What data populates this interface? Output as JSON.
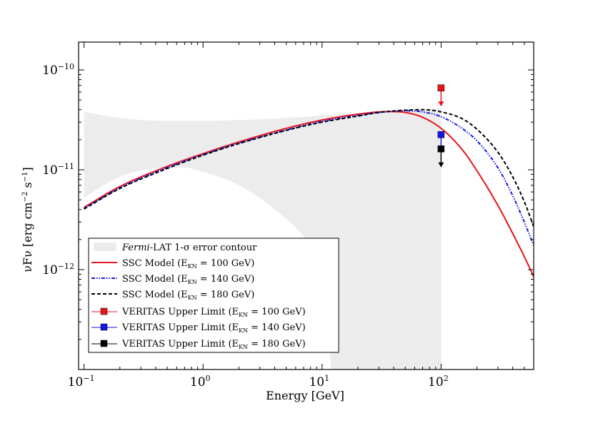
{
  "chart_data": {
    "type": "line",
    "xlabel": "Energy [GeV]",
    "ylabel": "νFν [erg cm⁻² s⁻¹]",
    "ylabel_parts": {
      "main": "νFν [erg cm",
      "exp1": "−2",
      "mid": " s",
      "exp2": "−1",
      "end": "]"
    },
    "xscale": "log",
    "yscale": "log",
    "xlim": [
      0.09,
      600
    ],
    "ylim": [
      1e-13,
      1.9e-10
    ],
    "x_ticks": [
      {
        "value": 0.1,
        "base": "10",
        "exp": "−1"
      },
      {
        "value": 1,
        "base": "10",
        "exp": "0"
      },
      {
        "value": 10,
        "base": "10",
        "exp": "1"
      },
      {
        "value": 100,
        "base": "10",
        "exp": "2"
      }
    ],
    "y_ticks": [
      {
        "value": 1e-12,
        "base": "10",
        "exp": "−12"
      },
      {
        "value": 1e-11,
        "base": "10",
        "exp": "−11"
      },
      {
        "value": 1e-10,
        "base": "10",
        "exp": "−10"
      }
    ],
    "error_contour": {
      "name": "Fermi-LAT 1-σ error contour",
      "color": "#ececec",
      "upper": [
        [
          0.1,
          3.8e-11
        ],
        [
          0.2,
          3.3e-11
        ],
        [
          0.5,
          3.1e-11
        ],
        [
          1,
          3.1e-11
        ],
        [
          2,
          3.15e-11
        ],
        [
          5,
          3.3e-11
        ],
        [
          10,
          3.5e-11
        ],
        [
          20,
          3.7e-11
        ],
        [
          40,
          3.85e-11
        ],
        [
          100,
          4.1e-11
        ]
      ],
      "lower": [
        [
          0.1,
          5.3e-12
        ],
        [
          0.2,
          8.5e-12
        ],
        [
          0.5,
          1.05e-11
        ],
        [
          0.7,
          1.05e-11
        ],
        [
          1,
          9.5e-12
        ],
        [
          2,
          7e-12
        ],
        [
          4,
          4e-12
        ],
        [
          8,
          1.7e-12
        ],
        [
          11,
          7e-13
        ],
        [
          12,
          1e-13
        ],
        [
          100,
          1e-13
        ]
      ]
    },
    "series": [
      {
        "name": "SSC Model (E_KN = 100 GeV)",
        "label_main": "SSC Model (E",
        "label_sub": "KN",
        "label_end": " = 100 GeV)",
        "color": "#e8141c",
        "style": "solid",
        "points": [
          [
            0.1,
            4.2e-12
          ],
          [
            0.2,
            6.8e-12
          ],
          [
            0.5,
            1.08e-11
          ],
          [
            1,
            1.45e-11
          ],
          [
            2,
            1.9e-11
          ],
          [
            5,
            2.6e-11
          ],
          [
            10,
            3.15e-11
          ],
          [
            20,
            3.6e-11
          ],
          [
            30,
            3.8e-11
          ],
          [
            40,
            3.82e-11
          ],
          [
            50,
            3.75e-11
          ],
          [
            70,
            3.35e-11
          ],
          [
            100,
            2.6e-11
          ],
          [
            150,
            1.6e-11
          ],
          [
            200,
            9.8e-12
          ],
          [
            300,
            4.4e-12
          ],
          [
            400,
            2.3e-12
          ],
          [
            500,
            1.35e-12
          ],
          [
            600,
            8.5e-13
          ]
        ]
      },
      {
        "name": "SSC Model (E_KN = 140 GeV)",
        "label_main": "SSC Model (E",
        "label_sub": "KN",
        "label_end": " = 140 GeV)",
        "color": "#1414e6",
        "style": "dashdot",
        "points": [
          [
            0.1,
            4.1e-12
          ],
          [
            0.2,
            6.6e-12
          ],
          [
            0.5,
            1.05e-11
          ],
          [
            1,
            1.42e-11
          ],
          [
            2,
            1.85e-11
          ],
          [
            5,
            2.5e-11
          ],
          [
            10,
            3.05e-11
          ],
          [
            20,
            3.5e-11
          ],
          [
            30,
            3.75e-11
          ],
          [
            50,
            3.9e-11
          ],
          [
            70,
            3.8e-11
          ],
          [
            100,
            3.4e-11
          ],
          [
            150,
            2.6e-11
          ],
          [
            200,
            1.95e-11
          ],
          [
            300,
            1.05e-11
          ],
          [
            400,
            5.5e-12
          ],
          [
            500,
            3e-12
          ],
          [
            600,
            1.75e-12
          ]
        ]
      },
      {
        "name": "SSC Model (E_KN = 180 GeV)",
        "label_main": "SSC Model (E",
        "label_sub": "KN",
        "label_end": " = 180 GeV)",
        "color": "#000000",
        "style": "dashed",
        "points": [
          [
            0.1,
            4.05e-12
          ],
          [
            0.2,
            6.5e-12
          ],
          [
            0.5,
            1.03e-11
          ],
          [
            1,
            1.4e-11
          ],
          [
            2,
            1.83e-11
          ],
          [
            5,
            2.48e-11
          ],
          [
            10,
            3e-11
          ],
          [
            20,
            3.45e-11
          ],
          [
            30,
            3.75e-11
          ],
          [
            50,
            3.95e-11
          ],
          [
            70,
            4e-11
          ],
          [
            100,
            3.8e-11
          ],
          [
            150,
            3.25e-11
          ],
          [
            200,
            2.55e-11
          ],
          [
            300,
            1.5e-11
          ],
          [
            400,
            8.5e-12
          ],
          [
            500,
            4.8e-12
          ],
          [
            600,
            2.7e-12
          ]
        ]
      }
    ],
    "upper_limits": [
      {
        "name": "VERITAS Upper Limit (E_KN = 100 GeV)",
        "label_main": "VERITAS Upper Limit (E",
        "label_sub": "KN",
        "label_end": " = 100 GeV)",
        "x": 100,
        "y": 6.6e-11,
        "color": "#e8141c"
      },
      {
        "name": "VERITAS Upper Limit (E_KN = 140 GeV)",
        "label_main": "VERITAS Upper Limit (E",
        "label_sub": "KN",
        "label_end": " = 140 GeV)",
        "x": 100,
        "y": 2.25e-11,
        "color": "#1414e6"
      },
      {
        "name": "VERITAS Upper Limit (E_KN = 180 GeV)",
        "label_main": "VERITAS Upper Limit (E",
        "label_sub": "KN",
        "label_end": " = 180 GeV)",
        "x": 100,
        "y": 1.62e-11,
        "color": "#000000"
      }
    ],
    "legend": {
      "location": "lower-left",
      "contour_label_italic": "Fermi",
      "contour_label_rest": "-LAT 1-σ error contour"
    }
  }
}
